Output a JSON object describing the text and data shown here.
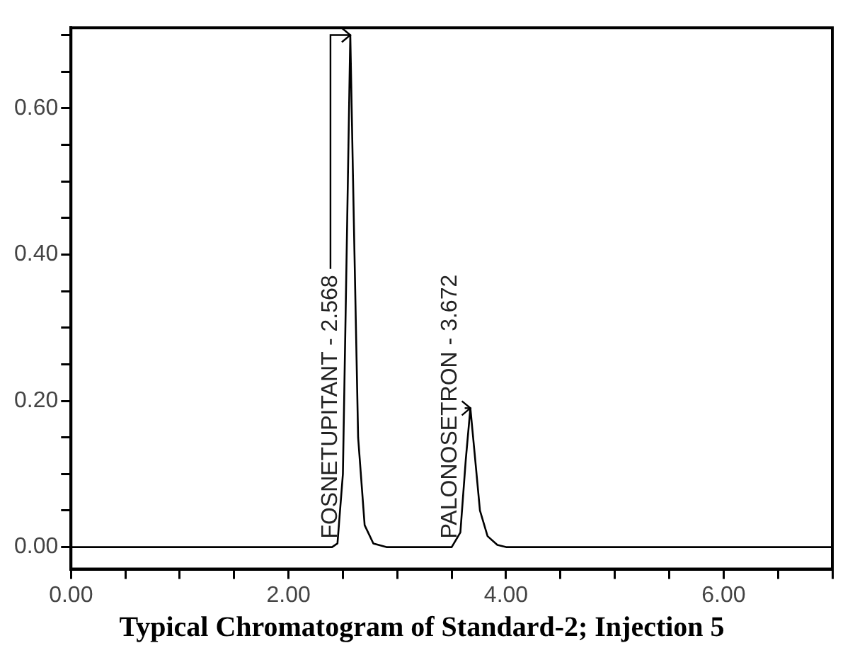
{
  "chart_data": {
    "type": "line",
    "title": "Typical Chromatogram of Standard-2; Injection 5",
    "series": [
      {
        "color": "#000000",
        "x": [
          0,
          2.4,
          2.45,
          2.5,
          2.54,
          2.568,
          2.6,
          2.64,
          2.7,
          2.78,
          2.9,
          3.5,
          3.58,
          3.63,
          3.672,
          3.71,
          3.76,
          3.83,
          3.92,
          4.0,
          7.0
        ],
        "values": [
          0,
          0,
          0.005,
          0.1,
          0.45,
          0.7,
          0.45,
          0.15,
          0.03,
          0.005,
          0,
          0,
          0.02,
          0.12,
          0.19,
          0.13,
          0.05,
          0.015,
          0.003,
          0,
          0
        ]
      }
    ],
    "annotations": [
      {
        "text": "FOSNETUPITANT - 2.568",
        "x": 2.568,
        "y": 0.7
      },
      {
        "text": "PALONOSETRON - 3.672",
        "x": 3.672,
        "y": 0.19
      }
    ],
    "xlim": [
      0,
      7
    ],
    "xticks": [
      {
        "value": 0,
        "label": "0.00"
      },
      {
        "value": 0.5,
        "label": null
      },
      {
        "value": 1,
        "label": null
      },
      {
        "value": 1.5,
        "label": null
      },
      {
        "value": 2,
        "label": "2.00"
      },
      {
        "value": 2.5,
        "label": null
      },
      {
        "value": 3,
        "label": null
      },
      {
        "value": 3.5,
        "label": null
      },
      {
        "value": 4,
        "label": "4.00"
      },
      {
        "value": 4.5,
        "label": null
      },
      {
        "value": 5,
        "label": null
      },
      {
        "value": 5.5,
        "label": null
      },
      {
        "value": 6,
        "label": "6.00"
      },
      {
        "value": 6.5,
        "label": null
      },
      {
        "value": 7,
        "label": null
      }
    ],
    "ylim": [
      -0.03,
      0.71
    ],
    "yticks": [
      {
        "value": 0,
        "label": "0.00"
      },
      {
        "value": 0.05,
        "label": null
      },
      {
        "value": 0.1,
        "label": null
      },
      {
        "value": 0.15,
        "label": null
      },
      {
        "value": 0.2,
        "label": "0.20"
      },
      {
        "value": 0.25,
        "label": null
      },
      {
        "value": 0.3,
        "label": null
      },
      {
        "value": 0.35,
        "label": null
      },
      {
        "value": 0.4,
        "label": "0.40"
      },
      {
        "value": 0.45,
        "label": null
      },
      {
        "value": 0.5,
        "label": null
      },
      {
        "value": 0.55,
        "label": null
      },
      {
        "value": 0.6,
        "label": "0.60"
      },
      {
        "value": 0.65,
        "label": null
      },
      {
        "value": 0.7,
        "label": null
      }
    ],
    "grid": false,
    "legend": false,
    "marker": "none",
    "line_style": "solid"
  }
}
